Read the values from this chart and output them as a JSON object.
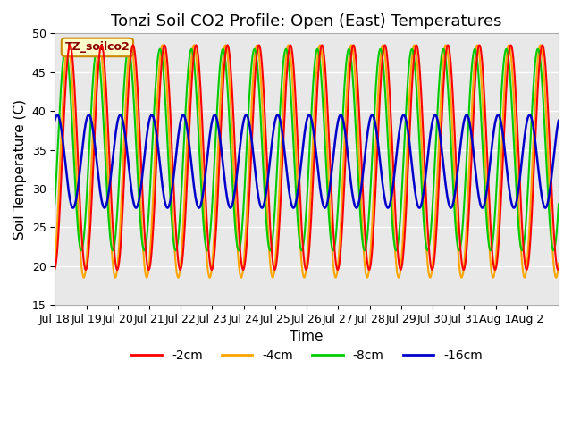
{
  "title": "Tonzi Soil CO2 Profile: Open (East) Temperatures",
  "ylabel": "Soil Temperature (C)",
  "xlabel": "Time",
  "legend_label": "TZ_soilco2",
  "ylim": [
    15,
    50
  ],
  "legend_entries": [
    "-2cm",
    "-4cm",
    "-8cm",
    "-16cm"
  ],
  "line_colors": [
    "#ff0000",
    "#ffa500",
    "#00cc00",
    "#0000cc"
  ],
  "background_color": "#e8e8e8",
  "grid_color": "#ffffff",
  "xtick_labels": [
    "Jul 18",
    "Jul 19",
    "Jul 20",
    "Jul 21",
    "Jul 22",
    "Jul 23",
    "Jul 24",
    "Jul 25",
    "Jul 26",
    "Jul 27",
    "Jul 28",
    "Jul 29",
    "Jul 30",
    "Jul 31",
    "Aug 1",
    "Aug 2"
  ],
  "ytick_vals": [
    15,
    20,
    25,
    30,
    35,
    40,
    45,
    50
  ],
  "title_fontsize": 13,
  "axis_fontsize": 11,
  "tick_fontsize": 9,
  "legend_fontsize": 10,
  "n_days": 16,
  "amp_2cm": 14.5,
  "mean_2cm": 34.0,
  "phase_2cm": -1.47,
  "amp_4cm": 15.0,
  "mean_4cm": 33.5,
  "phase_4cm": -1.07,
  "amp_8cm": 13.0,
  "mean_8cm": 35.0,
  "phase_8cm": -0.57,
  "amp_16cm": 6.0,
  "mean_16cm": 33.5,
  "phase_16cm": 1.07,
  "clip_2cm": [
    18.0,
    50.0
  ],
  "clip_4cm": [
    17.0,
    50.0
  ],
  "clip_8cm": [
    22.0,
    49.0
  ],
  "clip_16cm": [
    27.0,
    40.0
  ]
}
